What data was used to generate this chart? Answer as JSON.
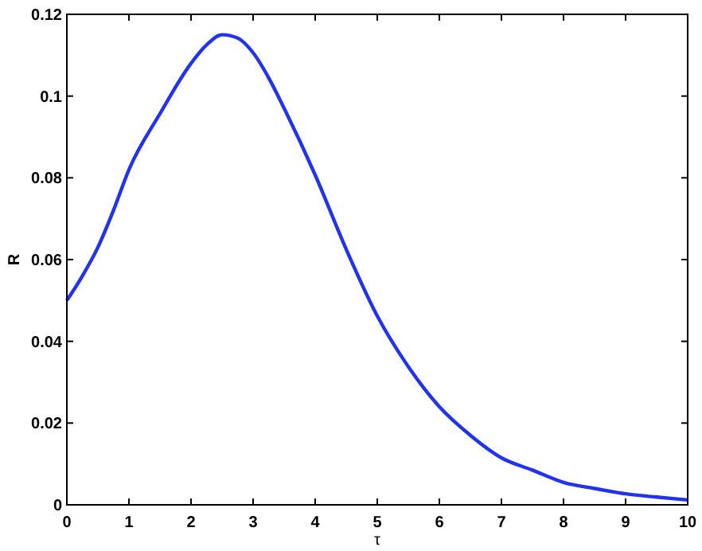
{
  "chart_data": {
    "type": "line",
    "xlabel": "τ",
    "ylabel": "R",
    "x": [
      0,
      0.25,
      0.5,
      0.75,
      1,
      1.5,
      2,
      2.25,
      2.5,
      2.75,
      3,
      3.25,
      3.5,
      4,
      4.5,
      5,
      5.5,
      6,
      6.5,
      7,
      7.5,
      8,
      8.5,
      9,
      9.5,
      10
    ],
    "series": [
      {
        "color": "#2233ee",
        "values": [
          0.05,
          0.056,
          0.063,
          0.072,
          0.082,
          0.0957,
          0.108,
          0.1125,
          0.115,
          0.1142,
          0.1106,
          0.1045,
          0.097,
          0.0807,
          0.0625,
          0.0462,
          0.0338,
          0.024,
          0.017,
          0.0115,
          0.0085,
          0.0055,
          0.004,
          0.0027,
          0.0019,
          0.0012
        ]
      }
    ],
    "xlim": [
      0,
      10
    ],
    "xticks": [
      0,
      1,
      2,
      3,
      4,
      5,
      6,
      7,
      8,
      9,
      10
    ],
    "ylim": [
      0,
      0.12
    ],
    "yticks": [
      0,
      0.02,
      0.04,
      0.06,
      0.08,
      0.1,
      0.12
    ],
    "grid": false,
    "marker": "none",
    "line_style": "solid"
  }
}
